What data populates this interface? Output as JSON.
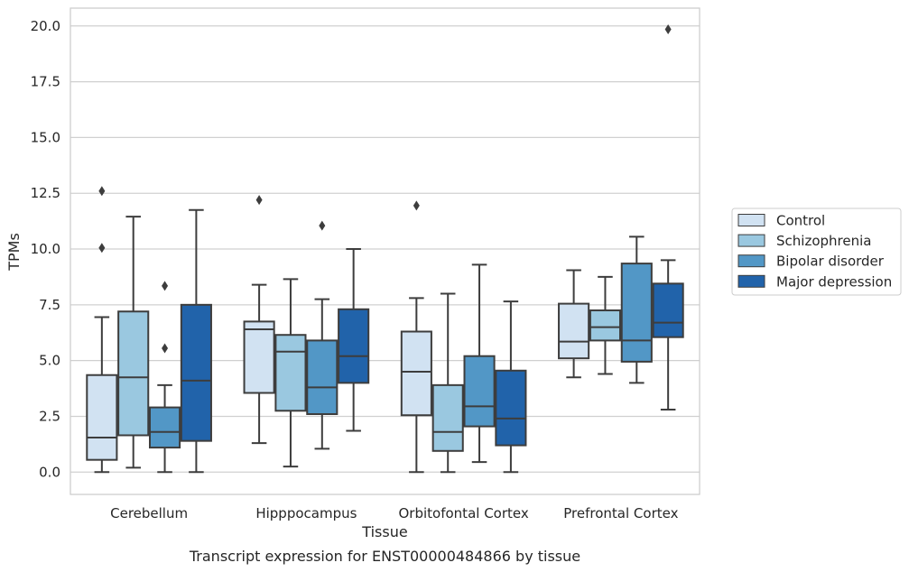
{
  "chart_data": {
    "type": "boxplot",
    "xlabel": "Tissue",
    "ylabel": "TPMs",
    "caption": "Transcript expression for ENST00000484866 by tissue",
    "ylim": [
      -1,
      20.8
    ],
    "yticks": [
      "0.0",
      "2.5",
      "5.0",
      "7.5",
      "10.0",
      "12.5",
      "15.0",
      "17.5",
      "20.0"
    ],
    "grid": "horizontal",
    "legend_position": "right",
    "categories": [
      "Cerebellum",
      "Hipppocampus",
      "Orbitofontal Cortex",
      "Prefrontal Cortex"
    ],
    "series": [
      {
        "name": "Control",
        "color": "#d1e2f2",
        "boxes": [
          {
            "whislo": 0.0,
            "q1": 0.55,
            "med": 1.55,
            "q3": 4.35,
            "whishi": 6.95,
            "fliers": [
              10.05,
              12.6
            ]
          },
          {
            "whislo": 1.3,
            "q1": 3.55,
            "med": 6.4,
            "q3": 6.75,
            "whishi": 8.4,
            "fliers": [
              12.2
            ]
          },
          {
            "whislo": 0.0,
            "q1": 2.55,
            "med": 4.5,
            "q3": 6.3,
            "whishi": 7.8,
            "fliers": [
              11.95
            ]
          },
          {
            "whislo": 4.25,
            "q1": 5.1,
            "med": 5.85,
            "q3": 7.55,
            "whishi": 9.05,
            "fliers": []
          }
        ]
      },
      {
        "name": "Schizophrenia",
        "color": "#9ac8e0",
        "boxes": [
          {
            "whislo": 0.2,
            "q1": 1.65,
            "med": 4.25,
            "q3": 7.2,
            "whishi": 11.45,
            "fliers": []
          },
          {
            "whislo": 0.25,
            "q1": 2.75,
            "med": 5.4,
            "q3": 6.15,
            "whishi": 8.65,
            "fliers": []
          },
          {
            "whislo": 0.0,
            "q1": 0.95,
            "med": 1.8,
            "q3": 3.9,
            "whishi": 8.0,
            "fliers": []
          },
          {
            "whislo": 4.4,
            "q1": 5.9,
            "med": 6.5,
            "q3": 7.25,
            "whishi": 8.75,
            "fliers": []
          }
        ]
      },
      {
        "name": "Bipolar disorder",
        "color": "#5297c6",
        "boxes": [
          {
            "whislo": 0.0,
            "q1": 1.1,
            "med": 1.8,
            "q3": 2.9,
            "whishi": 3.9,
            "fliers": [
              5.55,
              8.35
            ]
          },
          {
            "whislo": 1.05,
            "q1": 2.6,
            "med": 3.8,
            "q3": 5.9,
            "whishi": 7.75,
            "fliers": [
              11.05
            ]
          },
          {
            "whislo": 0.45,
            "q1": 2.05,
            "med": 2.95,
            "q3": 5.2,
            "whishi": 9.3,
            "fliers": []
          },
          {
            "whislo": 4.0,
            "q1": 4.95,
            "med": 5.9,
            "q3": 9.35,
            "whishi": 10.55,
            "fliers": []
          }
        ]
      },
      {
        "name": "Major depression",
        "color": "#2163aa",
        "boxes": [
          {
            "whislo": 0.0,
            "q1": 1.4,
            "med": 4.1,
            "q3": 7.5,
            "whishi": 11.75,
            "fliers": []
          },
          {
            "whislo": 1.85,
            "q1": 4.0,
            "med": 5.2,
            "q3": 7.3,
            "whishi": 10.0,
            "fliers": []
          },
          {
            "whislo": 0.0,
            "q1": 1.2,
            "med": 2.4,
            "q3": 4.55,
            "whishi": 7.65,
            "fliers": []
          },
          {
            "whislo": 2.8,
            "q1": 6.05,
            "med": 6.7,
            "q3": 8.45,
            "whishi": 9.5,
            "fliers": [
              19.85
            ]
          }
        ]
      }
    ]
  }
}
